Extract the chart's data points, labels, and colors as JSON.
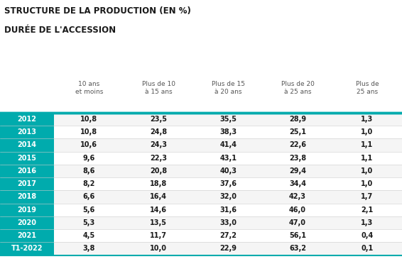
{
  "title_line1": "STRUCTURE DE LA PRODUCTION (EN %)",
  "title_line2": "DURÉE DE L'ACCESSION",
  "col_headers": [
    "10 ans\net moins",
    "Plus de 10\nà 15 ans",
    "Plus de 15\nà 20 ans",
    "Plus de 20\nà 25 ans",
    "Plus de\n25 ans"
  ],
  "row_labels": [
    "2012",
    "2013",
    "2014",
    "2015",
    "2016",
    "2017",
    "2018",
    "2019",
    "2020",
    "2021",
    "T1-2022"
  ],
  "data": [
    [
      10.8,
      23.5,
      35.5,
      28.9,
      1.3
    ],
    [
      10.8,
      24.8,
      38.3,
      25.1,
      1.0
    ],
    [
      10.6,
      24.3,
      41.4,
      22.6,
      1.1
    ],
    [
      9.6,
      22.3,
      43.1,
      23.8,
      1.1
    ],
    [
      8.6,
      20.8,
      40.3,
      29.4,
      1.0
    ],
    [
      8.2,
      18.8,
      37.6,
      34.4,
      1.0
    ],
    [
      6.6,
      16.4,
      32.0,
      42.3,
      1.7
    ],
    [
      5.6,
      14.6,
      31.6,
      46.0,
      2.1
    ],
    [
      5.3,
      13.5,
      33.0,
      47.0,
      1.3
    ],
    [
      4.5,
      11.7,
      27.2,
      56.1,
      0.4
    ],
    [
      3.8,
      10.0,
      22.9,
      63.2,
      0.1
    ]
  ],
  "teal_color": "#00ABAD",
  "header_text_color": "#555555",
  "row_label_text_color": "#ffffff",
  "data_text_color": "#1a1a1a",
  "title_color": "#1a1a1a",
  "background_color": "#ffffff",
  "alt_row_color": "#f5f5f5",
  "white": "#ffffff",
  "line_color_light": "#cccccc"
}
